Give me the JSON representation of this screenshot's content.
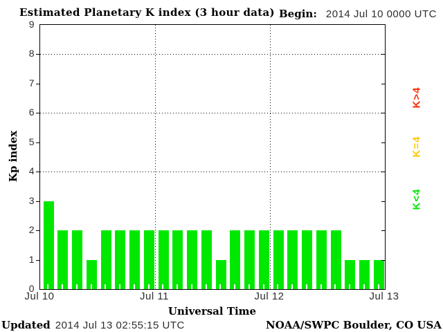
{
  "title": "Estimated Planetary K index (3 hour data)",
  "begin": {
    "label": "Begin:",
    "value": "2014 Jul 10 0000 UTC"
  },
  "footer": {
    "updated_label": "Updated",
    "updated_value": "2014 Jul 13 02:55:15 UTC",
    "credit": "NOAA/SWPC Boulder, CO USA"
  },
  "legend": [
    {
      "label": "K>4",
      "color": "#ff2a00"
    },
    {
      "label": "K=4",
      "color": "#ffc800"
    },
    {
      "label": "K<4",
      "color": "#00e800"
    }
  ],
  "chart_data": {
    "type": "bar",
    "title": "Estimated Planetary K index (3 hour data)",
    "xlabel": "Universal Time",
    "ylabel": "Kp index",
    "ylim": [
      0,
      9
    ],
    "yticks": [
      0,
      1,
      2,
      3,
      4,
      5,
      6,
      7,
      8,
      9
    ],
    "grid_y": [
      4,
      6,
      8
    ],
    "x_day_labels": [
      "Jul 10",
      "Jul 11",
      "Jul 12",
      "Jul 13"
    ],
    "hours_per_bar": 3,
    "bar_color": "#00e800",
    "categories": [
      "Jul 10 00-03",
      "Jul 10 03-06",
      "Jul 10 06-09",
      "Jul 10 09-12",
      "Jul 10 12-15",
      "Jul 10 15-18",
      "Jul 10 18-21",
      "Jul 10 21-24",
      "Jul 11 00-03",
      "Jul 11 03-06",
      "Jul 11 06-09",
      "Jul 11 09-12",
      "Jul 11 12-15",
      "Jul 11 15-18",
      "Jul 11 18-21",
      "Jul 11 21-24",
      "Jul 12 00-03",
      "Jul 12 03-06",
      "Jul 12 06-09",
      "Jul 12 09-12",
      "Jul 12 12-15",
      "Jul 12 15-18",
      "Jul 12 18-21",
      "Jul 12 21-24"
    ],
    "values": [
      3,
      2,
      2,
      1,
      2,
      2,
      2,
      2,
      2,
      2,
      2,
      2,
      1,
      2,
      2,
      2,
      2,
      2,
      2,
      2,
      2,
      1,
      1,
      1
    ]
  }
}
